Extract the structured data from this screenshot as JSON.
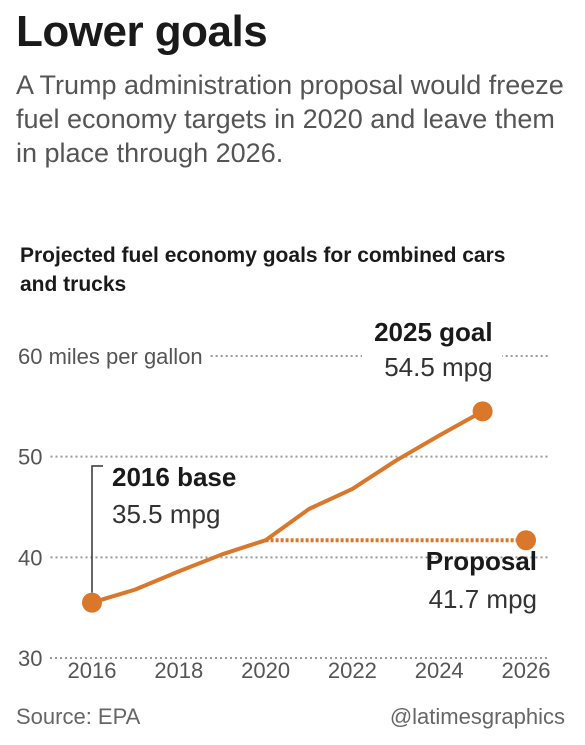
{
  "header": {
    "title": "Lower goals",
    "subtitle": "A Trump administration proposal would freeze fuel economy targets in 2020 and leave them in place through 2026."
  },
  "chart_heading": "Projected fuel economy goals for combined cars and trucks",
  "footer": {
    "source": "Source: EPA",
    "credit": "@latimesgraphics"
  },
  "colors": {
    "series": "#d9772b",
    "gridline": "#999999",
    "text": "#1a1a1a",
    "muted": "#555555"
  },
  "chart_data": {
    "type": "line",
    "xlim": [
      2016,
      2026
    ],
    "ylim": [
      30,
      60
    ],
    "x_ticks": [
      "2016",
      "2018",
      "2020",
      "2022",
      "2024",
      "2026"
    ],
    "y_ticks": [
      {
        "value": 30,
        "label": "30"
      },
      {
        "value": 40,
        "label": "40"
      },
      {
        "value": 50,
        "label": "50"
      },
      {
        "value": 60,
        "label": "60 miles per gallon"
      }
    ],
    "grid": "horizontal dotted",
    "series": [
      {
        "style": "solid",
        "x": [
          2016,
          2017,
          2018,
          2019,
          2020,
          2021,
          2022,
          2023,
          2024,
          2025
        ],
        "y": [
          35.5,
          36.8,
          38.6,
          40.3,
          41.7,
          44.8,
          46.8,
          49.6,
          52.1,
          54.5
        ]
      },
      {
        "style": "dotted",
        "x": [
          2020,
          2026
        ],
        "y": [
          41.7,
          41.7
        ]
      }
    ],
    "annotations": [
      {
        "id": "base",
        "x": 2016,
        "y": 35.5,
        "label": "2016 base",
        "value": "35.5 mpg"
      },
      {
        "id": "goal",
        "x": 2025,
        "y": 54.5,
        "label": "2025 goal",
        "value": "54.5 mpg"
      },
      {
        "id": "proposal",
        "x": 2026,
        "y": 41.7,
        "label": "Proposal",
        "value": "41.7 mpg"
      }
    ]
  }
}
